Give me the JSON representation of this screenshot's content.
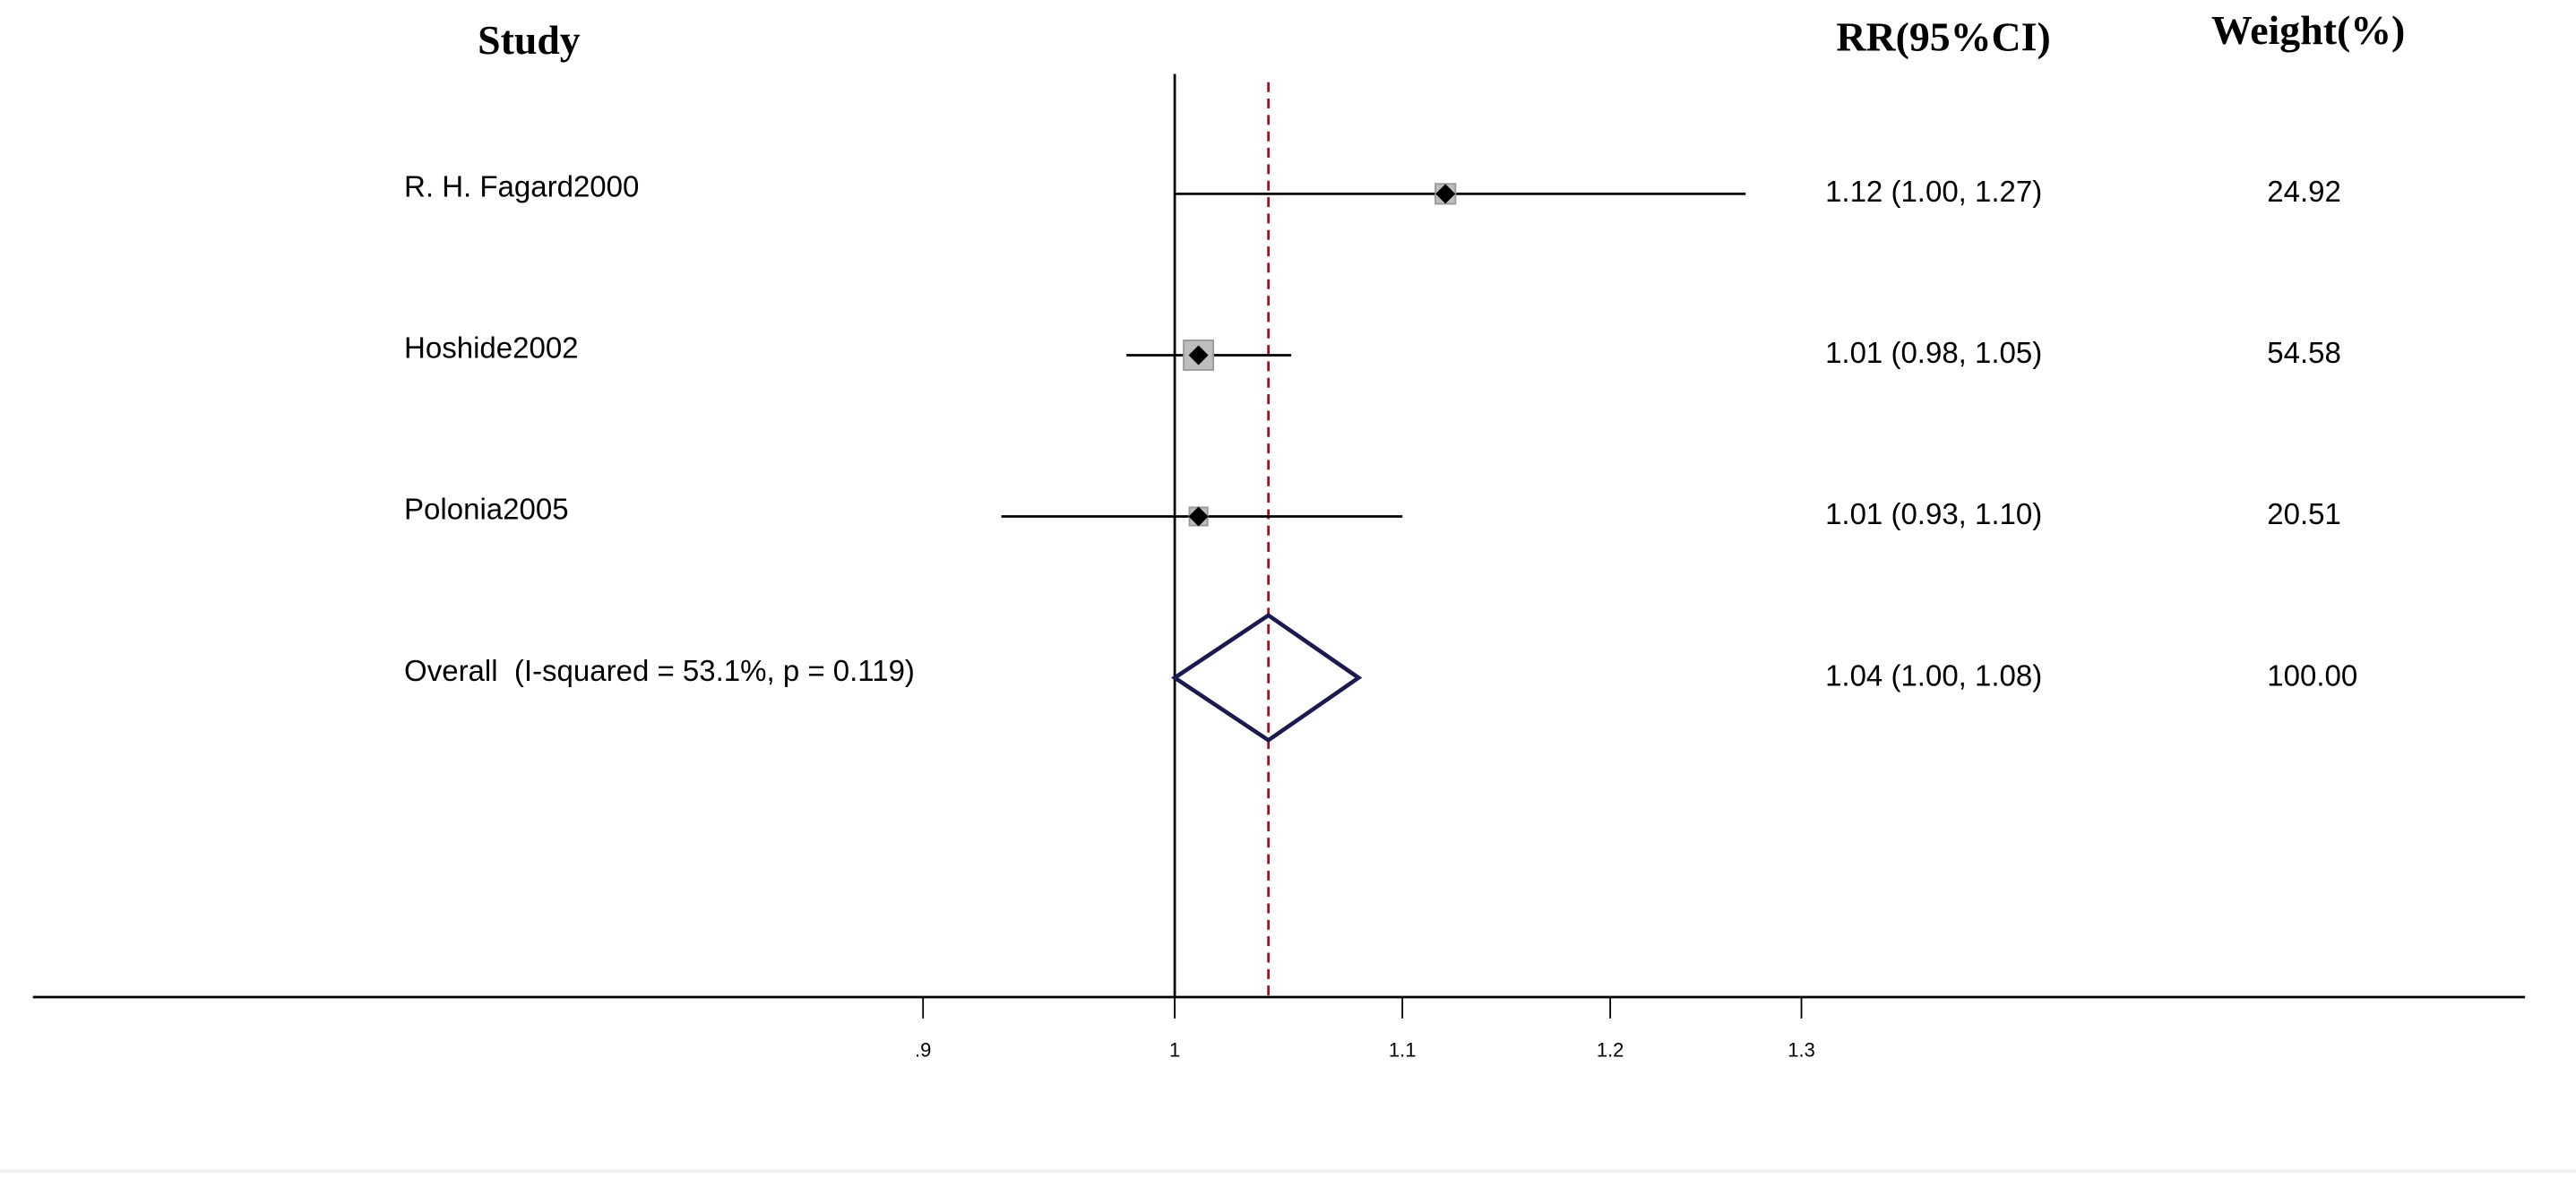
{
  "chart_data": {
    "type": "forest",
    "headers": {
      "study": "Study",
      "estimate": "RR(95%CI)",
      "weight": "Weight(%)"
    },
    "categories": [
      "R. H. Fagard2000",
      "Hoshide2002",
      "Polonia2005",
      "Overall  (I-squared = 53.1%, p = 0.119)"
    ],
    "values": [
      1.12,
      1.01,
      1.01,
      1.04
    ],
    "lower": [
      1.0,
      0.98,
      0.93,
      1.0
    ],
    "upper": [
      1.27,
      1.05,
      1.1,
      1.08
    ],
    "value_labels": [
      "1.12 (1.00, 1.27)",
      "1.01 (0.98, 1.05)",
      "1.01 (0.93, 1.10)",
      "1.04 (1.00, 1.08)"
    ],
    "weights": [
      24.92,
      54.58,
      20.51,
      100
    ],
    "weight_labels": [
      "24.92",
      "54.58",
      "20.51",
      "100.00"
    ],
    "reference_line": 1,
    "log_scale": true,
    "xlim": [
      0.62,
      1.76
    ],
    "xticks": [
      {
        "value": 0.9,
        "label": ".9"
      },
      1,
      1.1,
      1.2,
      1.3
    ],
    "marker_color": "#000000",
    "square_color": "#bdbdbd",
    "diamond_color": "#1a1a4e",
    "dashed_color": "#8b1a2b"
  }
}
